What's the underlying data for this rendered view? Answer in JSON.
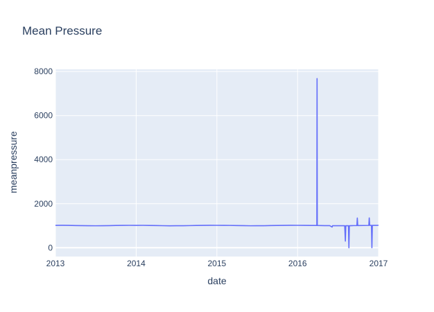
{
  "chart_data": {
    "type": "line",
    "title": "Mean Pressure",
    "xlabel": "date",
    "ylabel": "meanpressure",
    "x_range": [
      "2013-01-01",
      "2017-01-01"
    ],
    "ylim": [
      -400,
      8100
    ],
    "x_ticks": [
      {
        "date": "2013-01-01",
        "label": "2013"
      },
      {
        "date": "2014-01-01",
        "label": "2014"
      },
      {
        "date": "2015-01-01",
        "label": "2015"
      },
      {
        "date": "2016-01-01",
        "label": "2016"
      },
      {
        "date": "2017-01-01",
        "label": "2017"
      }
    ],
    "y_ticks": [
      0,
      2000,
      4000,
      6000,
      8000
    ],
    "grid": true,
    "colors": {
      "line": "#636efa",
      "plot_bg": "#e5ecf6",
      "grid": "#ffffff",
      "text": "#2a3f5f"
    },
    "series": [
      {
        "points": [
          [
            "2013-01-01",
            1016
          ],
          [
            "2013-02-01",
            1018
          ],
          [
            "2013-03-01",
            1014
          ],
          [
            "2013-04-01",
            1008
          ],
          [
            "2013-05-01",
            1002
          ],
          [
            "2013-06-01",
            998
          ],
          [
            "2013-07-01",
            997
          ],
          [
            "2013-08-01",
            999
          ],
          [
            "2013-09-01",
            1004
          ],
          [
            "2013-10-01",
            1011
          ],
          [
            "2013-11-01",
            1015
          ],
          [
            "2013-12-01",
            1017
          ],
          [
            "2014-01-01",
            1016
          ],
          [
            "2014-02-01",
            1017
          ],
          [
            "2014-03-01",
            1012
          ],
          [
            "2014-04-01",
            1007
          ],
          [
            "2014-05-01",
            1001
          ],
          [
            "2014-06-01",
            996
          ],
          [
            "2014-07-01",
            998
          ],
          [
            "2014-08-01",
            1000
          ],
          [
            "2014-09-01",
            1005
          ],
          [
            "2014-10-01",
            1012
          ],
          [
            "2014-11-01",
            1016
          ],
          [
            "2014-12-01",
            1018
          ],
          [
            "2015-01-01",
            1017
          ],
          [
            "2015-02-01",
            1016
          ],
          [
            "2015-03-01",
            1013
          ],
          [
            "2015-04-01",
            1008
          ],
          [
            "2015-05-01",
            1002
          ],
          [
            "2015-06-01",
            997
          ],
          [
            "2015-07-01",
            998
          ],
          [
            "2015-08-01",
            1000
          ],
          [
            "2015-09-01",
            1006
          ],
          [
            "2015-10-01",
            1012
          ],
          [
            "2015-11-01",
            1016
          ],
          [
            "2015-12-01",
            1018
          ],
          [
            "2016-01-01",
            1017
          ],
          [
            "2016-02-01",
            1016
          ],
          [
            "2016-03-01",
            1012
          ],
          [
            "2016-03-28",
            1010
          ],
          [
            "2016-03-29",
            7680
          ],
          [
            "2016-03-30",
            1009
          ],
          [
            "2016-04-15",
            1006
          ],
          [
            "2016-05-01",
            1004
          ],
          [
            "2016-05-25",
            1003
          ],
          [
            "2016-06-05",
            940
          ],
          [
            "2016-06-07",
            1001
          ],
          [
            "2016-07-01",
            998
          ],
          [
            "2016-08-01",
            999
          ],
          [
            "2016-08-04",
            300
          ],
          [
            "2016-08-06",
            1000
          ],
          [
            "2016-08-18",
            1000
          ],
          [
            "2016-08-20",
            -3
          ],
          [
            "2016-08-22",
            1000
          ],
          [
            "2016-09-10",
            1005
          ],
          [
            "2016-09-25",
            1005
          ],
          [
            "2016-09-27",
            1350
          ],
          [
            "2016-09-29",
            1007
          ],
          [
            "2016-11-18",
            1013
          ],
          [
            "2016-11-20",
            1352
          ],
          [
            "2016-11-22",
            1014
          ],
          [
            "2016-11-30",
            1014
          ],
          [
            "2016-12-02",
            0
          ],
          [
            "2016-12-04",
            1015
          ],
          [
            "2016-12-20",
            1016
          ],
          [
            "2017-01-01",
            1017
          ]
        ]
      }
    ]
  }
}
